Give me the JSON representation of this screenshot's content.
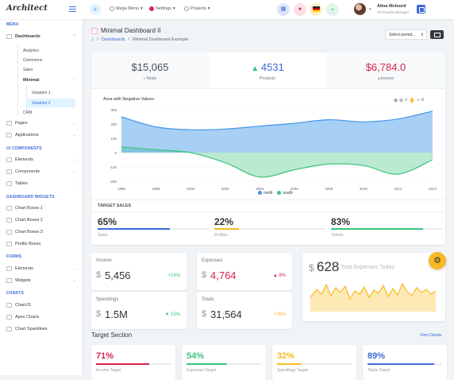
{
  "header": {
    "logo": "Architect",
    "menu": [
      {
        "label": "Mega Menu",
        "caret": "▾"
      },
      {
        "label": "Settings",
        "caret": "▾"
      },
      {
        "label": "Projects",
        "caret": "▾"
      }
    ],
    "user": {
      "name": "Alina Mclourd",
      "role": "VP People Manager"
    }
  },
  "sidebar": {
    "sections": [
      "MENU",
      "UI COMPONENTS",
      "DASHBOARD WIDGETS",
      "FORMS",
      "CHARTS"
    ],
    "dashboards": "Dashboards",
    "dash_items": [
      "Analytics",
      "Commerce",
      "Sales"
    ],
    "minimal": "Minimal",
    "minimal_items": [
      "Variation 1",
      "Variation 2"
    ],
    "crm": "CRM",
    "pages": "Pages",
    "applications": "Applications",
    "ui_items": [
      "Elements",
      "Components",
      "Tables"
    ],
    "widget_items": [
      "Chart Boxes 1",
      "Chart Boxes 2",
      "Chart Boxes 3",
      "Profile Boxes"
    ],
    "form_items": [
      "Elements",
      "Widgets"
    ],
    "chart_items": [
      "ChartJS",
      "Apex Charts",
      "Chart Sparklines"
    ]
  },
  "page": {
    "title": "Minimal Dashboard II",
    "breadcrumb": [
      "Dashboards",
      "Minimal Dashboard Example"
    ],
    "select": "Select period...",
    "stats": [
      {
        "value": "$15,065",
        "label": "Totals",
        "color": "#495057"
      },
      {
        "value": "4531",
        "label": "Products",
        "color": "#3f6ad8"
      },
      {
        "value": "$6,784.0",
        "label": "Income",
        "color": "#d92550"
      }
    ],
    "chart_title": "Area with Negative Values",
    "target_sales": "TARGET SALES",
    "targets": [
      {
        "pct": "65%",
        "label": "Sales",
        "fill": 0.65,
        "color": "#3f6ad8"
      },
      {
        "pct": "22%",
        "label": "Profiles",
        "fill": 0.22,
        "color": "#f7b924"
      },
      {
        "pct": "83%",
        "label": "Tickets",
        "fill": 0.83,
        "color": "#3ac47d"
      }
    ],
    "minis": [
      {
        "title": "Income",
        "cur": "$",
        "value": "5,456",
        "change": "+14%",
        "color": "#3ac47d"
      },
      {
        "title": "Expenses",
        "cur": "$",
        "value": "4,764",
        "change": "8%",
        "arrow": "▲",
        "color": "#d92550"
      },
      {
        "title": "Spendings",
        "cur": "$",
        "value": "1.5M",
        "change": "15%",
        "arrow": "▼",
        "color": "#3ac47d"
      },
      {
        "title": "Totals",
        "cur": "$",
        "value": "31,564",
        "change": "+76%",
        "color": "#f7b924"
      }
    ],
    "big": {
      "cur": "$",
      "value": "628",
      "label": "Total Expenses Today"
    },
    "target_section": "Target Section",
    "view_details": "View Details",
    "target_cards": [
      {
        "pct": "71%",
        "label": "Income Target",
        "fill": 0.71,
        "color": "#d92550"
      },
      {
        "pct": "54%",
        "label": "Expenses Target",
        "fill": 0.54,
        "color": "#3ac47d"
      },
      {
        "pct": "32%",
        "label": "Spendings Target",
        "fill": 0.32,
        "color": "#f7b924"
      },
      {
        "pct": "89%",
        "label": "Totals Target",
        "fill": 0.89,
        "color": "#3f6ad8"
      }
    ]
  },
  "chart_data": {
    "type": "area",
    "title": "Area with Negative Values",
    "x": [
      1996,
      1998,
      2000,
      2002,
      2004,
      2006,
      2008,
      2010,
      2012,
      2014
    ],
    "xticks": [
      "1996",
      "1998",
      "2000",
      "2002",
      "2004",
      "2006",
      "2008",
      "2010",
      "2012",
      "2014"
    ],
    "yticks": [
      "300",
      "200",
      "100",
      "0",
      "-100",
      "-200"
    ],
    "ylim": [
      -200,
      300
    ],
    "series": [
      {
        "name": "north",
        "color": "#3f97e8",
        "values": [
          250,
          180,
          160,
          165,
          185,
          205,
          230,
          215,
          235,
          290
        ]
      },
      {
        "name": "south",
        "color": "#3ac47d",
        "values": [
          40,
          20,
          0,
          -70,
          -170,
          -120,
          -80,
          -90,
          -150,
          -50
        ]
      }
    ],
    "legend": "bottom-center"
  }
}
